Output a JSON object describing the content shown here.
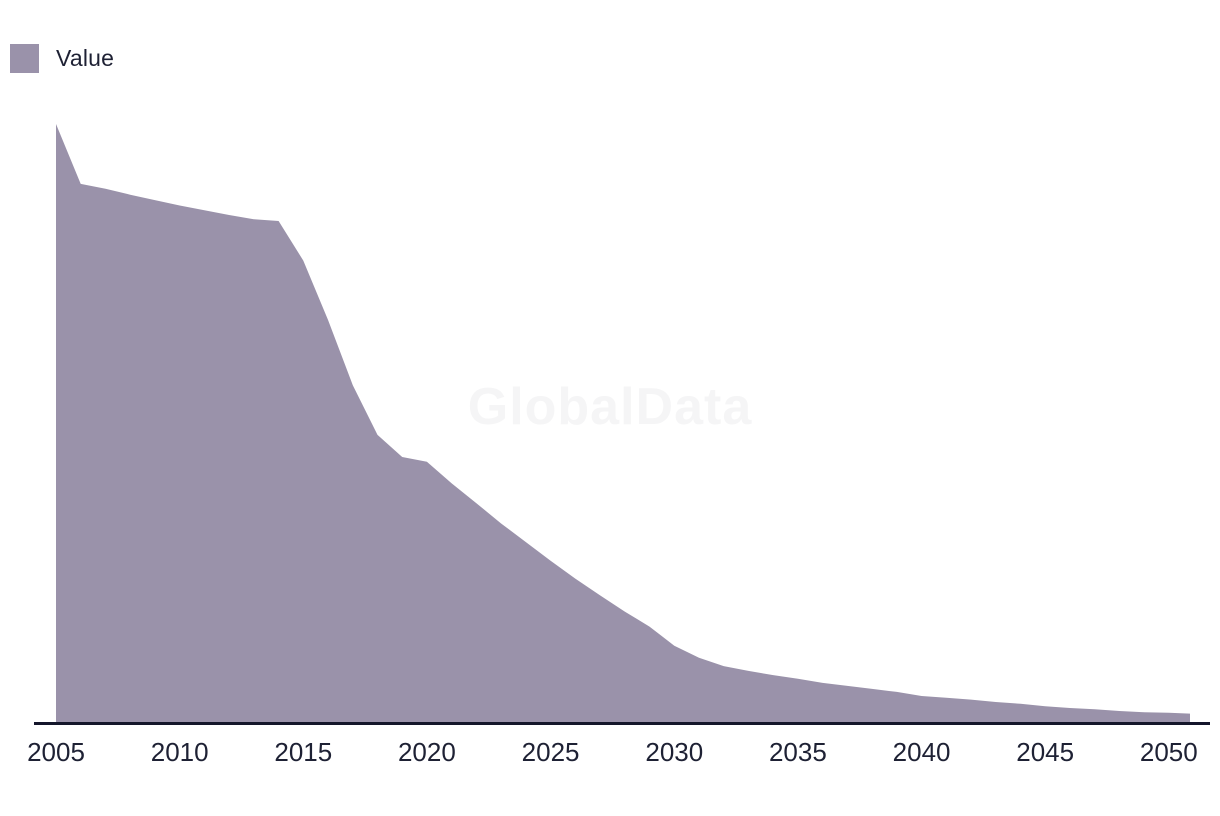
{
  "legend": {
    "label": "Value",
    "swatch_color": "#9a92aa"
  },
  "watermark": {
    "text": "GlobalData",
    "color": "#f5f5f6"
  },
  "chart_data": {
    "type": "area",
    "title": "",
    "xlabel": "",
    "ylabel": "",
    "x": [
      2005,
      2006,
      2007,
      2008,
      2009,
      2010,
      2011,
      2012,
      2013,
      2014,
      2015,
      2016,
      2017,
      2018,
      2019,
      2020,
      2021,
      2022,
      2023,
      2024,
      2025,
      2026,
      2027,
      2028,
      2029,
      2030,
      2031,
      2032,
      2033,
      2034,
      2035,
      2036,
      2037,
      2038,
      2039,
      2040,
      2041,
      2042,
      2043,
      2044,
      2045,
      2046,
      2047,
      2048,
      2049,
      2050
    ],
    "series": [
      {
        "name": "Value",
        "values": [
          100,
          90.0,
          89.2,
          88.2,
          87.3,
          86.4,
          85.6,
          84.8,
          84.1,
          83.8,
          77.2,
          67.3,
          56.4,
          48.1,
          44.4,
          43.6,
          40.0,
          36.7,
          33.3,
          30.2,
          27.1,
          24.1,
          21.3,
          18.6,
          16.1,
          12.9,
          10.9,
          9.5,
          8.7,
          8.0,
          7.4,
          6.7,
          6.2,
          5.7,
          5.2,
          4.5,
          4.2,
          3.9,
          3.5,
          3.2,
          2.8,
          2.5,
          2.3,
          2.0,
          1.8,
          1.7
        ]
      }
    ],
    "y_units": "relative (peak 2005 = 100, no y-axis shown)",
    "ylim": [
      0,
      100
    ],
    "x_tick_labels": [
      "2005",
      "2010",
      "2015",
      "2020",
      "2025",
      "2030",
      "2035",
      "2040",
      "2045",
      "2050"
    ],
    "x_ticks": [
      2005,
      2010,
      2015,
      2020,
      2025,
      2030,
      2035,
      2040,
      2045,
      2050
    ],
    "grid": false,
    "legend_position": "top-left",
    "colors": {
      "area": "#9a92aa",
      "axis_line": "#14162b",
      "tick_text": "#1e2134"
    }
  }
}
